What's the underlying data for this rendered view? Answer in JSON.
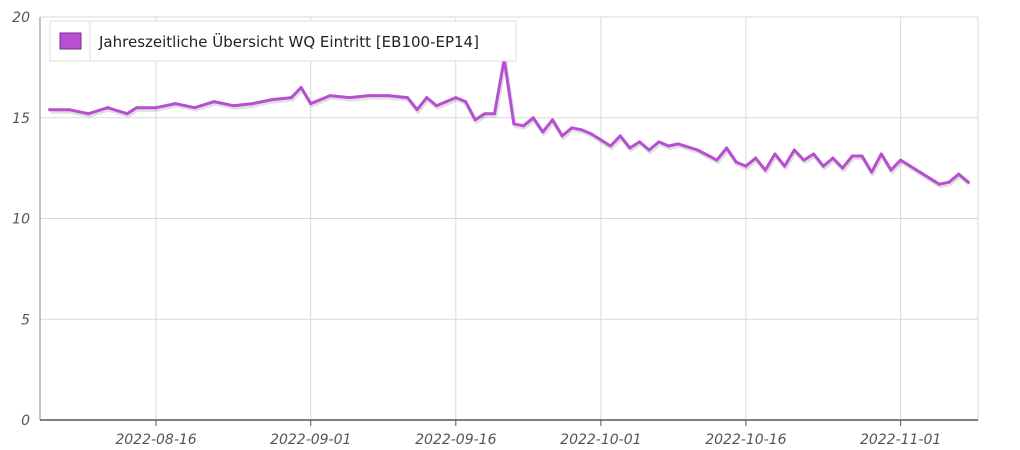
{
  "chart_data": {
    "type": "line",
    "title": "",
    "xlabel": "",
    "ylabel": "",
    "ylim": [
      0,
      20
    ],
    "xlim": [
      "2022-08-04",
      "2022-11-09"
    ],
    "y_ticks": [
      "0",
      "5",
      "10",
      "15",
      "20"
    ],
    "x_ticks": [
      "2022-08-16",
      "2022-09-01",
      "2022-09-16",
      "2022-10-01",
      "2022-10-16",
      "2022-11-01"
    ],
    "grid": true,
    "legend_position": "top-left",
    "series": [
      {
        "name": "Jahreszeitliche Übersicht WQ Eintritt [EB100-EP14]",
        "color": "#b84fd0",
        "x": [
          "2022-08-05",
          "2022-08-07",
          "2022-08-09",
          "2022-08-11",
          "2022-08-13",
          "2022-08-14",
          "2022-08-16",
          "2022-08-18",
          "2022-08-20",
          "2022-08-22",
          "2022-08-24",
          "2022-08-26",
          "2022-08-28",
          "2022-08-30",
          "2022-08-31",
          "2022-09-01",
          "2022-09-03",
          "2022-09-05",
          "2022-09-07",
          "2022-09-09",
          "2022-09-11",
          "2022-09-12",
          "2022-09-13",
          "2022-09-14",
          "2022-09-16",
          "2022-09-17",
          "2022-09-18",
          "2022-09-19",
          "2022-09-20",
          "2022-09-21",
          "2022-09-22",
          "2022-09-23",
          "2022-09-24",
          "2022-09-25",
          "2022-09-26",
          "2022-09-27",
          "2022-09-28",
          "2022-09-29",
          "2022-09-30",
          "2022-10-01",
          "2022-10-02",
          "2022-10-03",
          "2022-10-04",
          "2022-10-05",
          "2022-10-06",
          "2022-10-07",
          "2022-10-08",
          "2022-10-09",
          "2022-10-11",
          "2022-10-13",
          "2022-10-14",
          "2022-10-15",
          "2022-10-16",
          "2022-10-17",
          "2022-10-18",
          "2022-10-19",
          "2022-10-20",
          "2022-10-21",
          "2022-10-22",
          "2022-10-23",
          "2022-10-24",
          "2022-10-25",
          "2022-10-26",
          "2022-10-27",
          "2022-10-28",
          "2022-10-29",
          "2022-10-30",
          "2022-10-31",
          "2022-11-01",
          "2022-11-02",
          "2022-11-03",
          "2022-11-04",
          "2022-11-05",
          "2022-11-06",
          "2022-11-07",
          "2022-11-08"
        ],
        "y": [
          15.4,
          15.4,
          15.2,
          15.5,
          15.2,
          15.5,
          15.5,
          15.7,
          15.5,
          15.8,
          15.6,
          15.7,
          15.9,
          16.0,
          16.5,
          15.7,
          16.1,
          16.0,
          16.1,
          16.1,
          16.0,
          15.4,
          16.0,
          15.6,
          16.0,
          15.8,
          14.9,
          15.2,
          15.2,
          17.9,
          14.7,
          14.6,
          15.0,
          14.3,
          14.9,
          14.1,
          14.5,
          14.4,
          14.2,
          13.9,
          13.6,
          14.1,
          13.5,
          13.8,
          13.4,
          13.8,
          13.6,
          13.7,
          13.4,
          12.9,
          13.5,
          12.8,
          12.6,
          13.0,
          12.4,
          13.2,
          12.6,
          13.4,
          12.9,
          13.2,
          12.6,
          13.0,
          12.5,
          13.1,
          13.1,
          12.3,
          13.2,
          12.4,
          12.9,
          12.6,
          12.3,
          12.0,
          11.7,
          11.8,
          12.2,
          11.8
        ]
      }
    ]
  }
}
